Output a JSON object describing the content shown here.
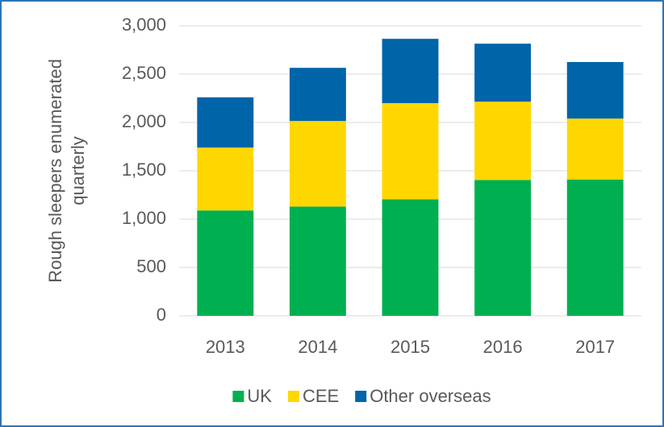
{
  "chart_data": {
    "type": "bar",
    "stacked": true,
    "y_label": [
      "Rough sleepers enumerated",
      "quarterly"
    ],
    "categories": [
      "2013",
      "2014",
      "2015",
      "2016",
      "2017"
    ],
    "series": [
      {
        "name": "UK",
        "color": "#00b050",
        "values": [
          1090,
          1130,
          1205,
          1405,
          1410
        ]
      },
      {
        "name": "CEE",
        "color": "#ffd700",
        "values": [
          650,
          885,
          995,
          810,
          630
        ]
      },
      {
        "name": "Other overseas",
        "color": "#0064a8",
        "values": [
          520,
          550,
          665,
          600,
          585
        ]
      }
    ],
    "ylim": [
      0,
      3000
    ],
    "yticks": [
      0,
      500,
      {
        "value": 1000,
        "label": "1,000"
      },
      {
        "value": 1500,
        "label": "1,500"
      },
      {
        "value": 2000,
        "label": "2,000"
      },
      {
        "value": 2500,
        "label": "2,500"
      },
      {
        "value": 3000,
        "label": "3,000"
      }
    ],
    "grid": true,
    "legend": "bottom"
  }
}
